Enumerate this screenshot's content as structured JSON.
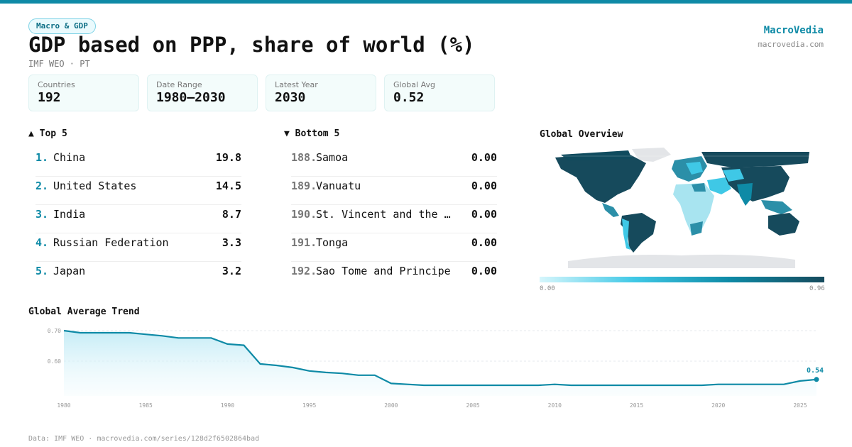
{
  "header": {
    "category": "Macro & GDP",
    "title": "GDP based on PPP, share of world (%)",
    "subtitle": "IMF WEO · PT",
    "brand": "MacroVedia",
    "brand_url": "macrovedia.com"
  },
  "stats": [
    {
      "label": "Countries",
      "value": "192"
    },
    {
      "label": "Date Range",
      "value": "1980–2030"
    },
    {
      "label": "Latest Year",
      "value": "2030"
    },
    {
      "label": "Global Avg",
      "value": "0.52"
    }
  ],
  "top5": {
    "title": "▲ Top 5",
    "items": [
      {
        "rank": "1.",
        "name": "China",
        "value": "19.8"
      },
      {
        "rank": "2.",
        "name": "United States",
        "value": "14.5"
      },
      {
        "rank": "3.",
        "name": "India",
        "value": "8.7"
      },
      {
        "rank": "4.",
        "name": "Russian Federation",
        "value": "3.3"
      },
      {
        "rank": "5.",
        "name": "Japan",
        "value": "3.2"
      }
    ]
  },
  "bottom5": {
    "title": "▼ Bottom 5",
    "items": [
      {
        "rank": "188.",
        "name": "Samoa",
        "value": "0.00"
      },
      {
        "rank": "189.",
        "name": "Vanuatu",
        "value": "0.00"
      },
      {
        "rank": "190.",
        "name": "St. Vincent and the Grenadines",
        "value": "0.00"
      },
      {
        "rank": "191.",
        "name": "Tonga",
        "value": "0.00"
      },
      {
        "rank": "192.",
        "name": "Sao Tome and Principe",
        "value": "0.00"
      }
    ]
  },
  "map": {
    "title": "Global Overview",
    "legend_min": "0.00",
    "legend_max": "0.96",
    "colors": [
      "#d6f6fc",
      "#3fc8e6",
      "#0e8aa6",
      "#164a5c"
    ]
  },
  "footer": "Data: IMF WEO · macrovedia.com/series/128d2f6502864bad",
  "chart_data": {
    "type": "area",
    "title": "Global Average Trend",
    "x": [
      1980,
      1981,
      1982,
      1983,
      1984,
      1985,
      1986,
      1987,
      1988,
      1989,
      1990,
      1991,
      1992,
      1993,
      1994,
      1995,
      1996,
      1997,
      1998,
      1999,
      2000,
      2001,
      2002,
      2003,
      2004,
      2005,
      2006,
      2007,
      2008,
      2009,
      2010,
      2011,
      2012,
      2013,
      2014,
      2015,
      2016,
      2017,
      2018,
      2019,
      2020,
      2021,
      2022,
      2023,
      2024,
      2025,
      2026
    ],
    "y": [
      0.7,
      0.693,
      0.693,
      0.693,
      0.693,
      0.688,
      0.683,
      0.676,
      0.676,
      0.676,
      0.656,
      0.652,
      0.591,
      0.586,
      0.579,
      0.568,
      0.563,
      0.56,
      0.554,
      0.554,
      0.527,
      0.524,
      0.521,
      0.521,
      0.521,
      0.521,
      0.521,
      0.521,
      0.521,
      0.521,
      0.524,
      0.521,
      0.521,
      0.521,
      0.521,
      0.521,
      0.521,
      0.521,
      0.521,
      0.521,
      0.524,
      0.524,
      0.524,
      0.524,
      0.524,
      0.535,
      0.54
    ],
    "yticks": [
      0.6,
      0.7
    ],
    "xticks": [
      1980,
      1985,
      1990,
      1995,
      2000,
      2005,
      2010,
      2015,
      2020,
      2025
    ],
    "last_label": "0.54",
    "line_color": "#0e8aa6"
  }
}
